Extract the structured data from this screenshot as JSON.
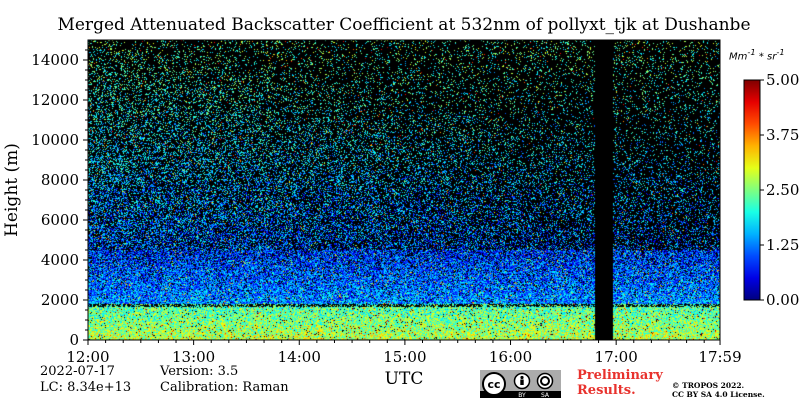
{
  "chart_data": {
    "type": "heatmap",
    "title": "Merged Attenuated Backscatter Coefficient at 532nm of pollyxt_tjk at Dushanbe",
    "xlabel": "UTC",
    "ylabel": "Height (m)",
    "x_ticks": [
      "12:00",
      "13:00",
      "14:00",
      "15:00",
      "16:00",
      "17:00",
      "17:59"
    ],
    "x_range_hours": [
      12.0,
      17.983
    ],
    "y_ticks": [
      0,
      2000,
      4000,
      6000,
      8000,
      10000,
      12000,
      14000
    ],
    "ylim": [
      0,
      15000
    ],
    "colorbar": {
      "unit": "Mm^-1*sr^-1",
      "ticks": [
        "0.00",
        "1.25",
        "2.50",
        "3.75",
        "5.00"
      ],
      "range": [
        0,
        5
      ],
      "colormap": "jet"
    },
    "no_data_gaps": [
      {
        "start_hour": 16.8,
        "end_hour": 16.97
      }
    ],
    "layers": [
      {
        "name": "boundary layer",
        "top_m": 1800,
        "level": 2.8
      },
      {
        "name": "aerosol layer",
        "base_m": 2000,
        "top_m": 4500,
        "level": 1.3
      }
    ]
  },
  "meta": {
    "date": "2022-07-17",
    "lc": "LC: 8.34e+13",
    "version": "Version: 3.5",
    "calibration": "Calibration: Raman",
    "preliminary_line1": "Preliminary",
    "preliminary_line2": "Results.",
    "copyright_line1": "© TROPOS 2022.",
    "copyright_line2": "CC BY SA 4.0 License.",
    "license_badge": {
      "by": "BY",
      "sa": "SA"
    }
  }
}
